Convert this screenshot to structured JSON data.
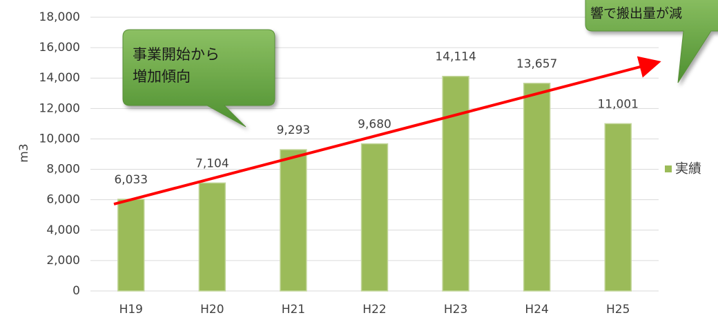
{
  "chart_data": {
    "type": "bar",
    "y_label": "m3",
    "categories": [
      "H19",
      "H20",
      "H21",
      "H22",
      "H23",
      "H24",
      "H25"
    ],
    "series": [
      {
        "name": "実績",
        "color": "#9bbb59",
        "values": [
          6033,
          7104,
          9293,
          9680,
          14114,
          13657,
          11001
        ],
        "value_labels": [
          "6,033",
          "7,104",
          "9,293",
          "9,680",
          "14,114",
          "13,657",
          "11,001"
        ]
      }
    ],
    "ylim": [
      0,
      18000
    ],
    "yticks": [
      0,
      {
        "value": 2000,
        "label": "2,000"
      },
      {
        "value": 4000,
        "label": "4,000"
      },
      {
        "value": 6000,
        "label": "6,000"
      },
      {
        "value": 8000,
        "label": "8,000"
      },
      {
        "value": 10000,
        "label": "10,000"
      },
      {
        "value": 12000,
        "label": "12,000"
      },
      {
        "value": 14000,
        "label": "14,000"
      },
      {
        "value": 16000,
        "label": "16,000"
      },
      {
        "value": 18000,
        "label": "18,000"
      }
    ],
    "grid": true,
    "legend": "right",
    "annotations": [
      {
        "lines": [
          "事業開始から",
          "増加傾向"
        ]
      },
      {
        "lines": [
          "響で搬出量が減"
        ]
      }
    ]
  }
}
